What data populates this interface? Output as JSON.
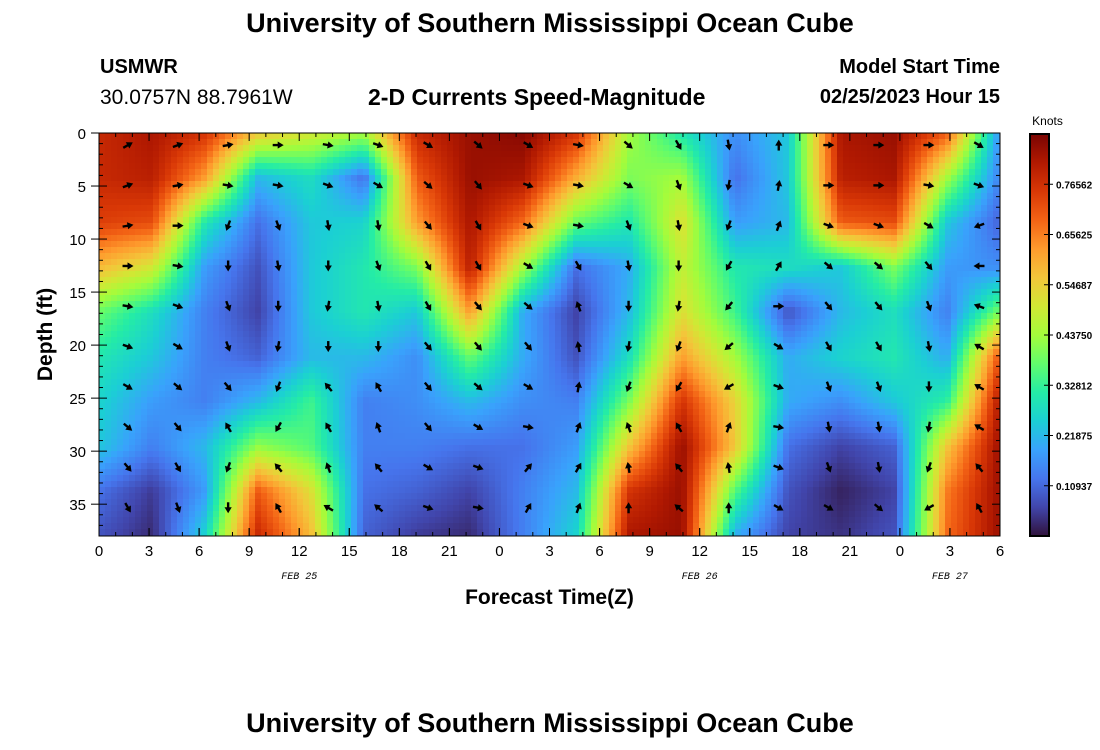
{
  "header": {
    "title": "University of Southern Mississippi Ocean Cube",
    "station": "USMWR",
    "coordinates": "30.0757N  88.7961W",
    "plot_title": "2-D Currents Speed-Magnitude",
    "model_label": "Model Start Time",
    "model_time": "02/25/2023 Hour 15"
  },
  "footer": {
    "title": "University of Southern Mississippi Ocean Cube"
  },
  "chart_data": {
    "type": "heatmap",
    "xlabel": "Forecast Time(Z)",
    "ylabel": "Depth (ft)",
    "colorbar_label": "Knots",
    "x_tick_labels": [
      "0",
      "3",
      "6",
      "9",
      "12",
      "15",
      "18",
      "21",
      "0",
      "3",
      "6",
      "9",
      "12",
      "15",
      "18",
      "21",
      "0",
      "3",
      "6"
    ],
    "date_labels": [
      {
        "label": "FEB 25",
        "at_tick": 4
      },
      {
        "label": "FEB 26",
        "at_tick": 12
      },
      {
        "label": "FEB 27",
        "at_tick": 17
      }
    ],
    "y_ticks": [
      0,
      5,
      10,
      15,
      20,
      25,
      30,
      35
    ],
    "ylim": [
      0,
      38
    ],
    "x_range_hours": [
      0,
      54
    ],
    "colorbar_ticks": [
      "0.76562",
      "0.65625",
      "0.54687",
      "0.43750",
      "0.32812",
      "0.21875",
      "0.10937"
    ],
    "colorbar_range": [
      0,
      0.875
    ],
    "colors": [
      "#30123b",
      "#4145ab",
      "#4675ed",
      "#39a2fc",
      "#1bcfd4",
      "#24eca6",
      "#61fc6c",
      "#a4fc3b",
      "#d1e834",
      "#f3c63a",
      "#fe9b2d",
      "#f36315",
      "#d93806",
      "#b11901",
      "#7a0402"
    ],
    "speed_grid_columns": [
      [
        0.78,
        0.78,
        0.74,
        0.58,
        0.38,
        0.3,
        0.26,
        0.24,
        0.12,
        0.08
      ],
      [
        0.82,
        0.8,
        0.72,
        0.5,
        0.28,
        0.24,
        0.18,
        0.14,
        0.05,
        0.03
      ],
      [
        0.76,
        0.62,
        0.3,
        0.18,
        0.14,
        0.14,
        0.14,
        0.22,
        0.18,
        0.26
      ],
      [
        0.56,
        0.22,
        0.12,
        0.08,
        0.06,
        0.1,
        0.22,
        0.42,
        0.7,
        0.78
      ],
      [
        0.5,
        0.28,
        0.24,
        0.24,
        0.24,
        0.22,
        0.34,
        0.36,
        0.52,
        0.58
      ],
      [
        0.44,
        0.12,
        0.26,
        0.3,
        0.3,
        0.22,
        0.14,
        0.14,
        0.12,
        0.1
      ],
      [
        0.78,
        0.7,
        0.62,
        0.4,
        0.24,
        0.16,
        0.16,
        0.14,
        0.1,
        0.05
      ],
      [
        0.84,
        0.84,
        0.82,
        0.8,
        0.62,
        0.38,
        0.22,
        0.12,
        0.06,
        0.03
      ],
      [
        0.86,
        0.82,
        0.68,
        0.44,
        0.2,
        0.2,
        0.16,
        0.12,
        0.14,
        0.14
      ],
      [
        0.76,
        0.6,
        0.38,
        0.12,
        0.06,
        0.08,
        0.14,
        0.18,
        0.22,
        0.26
      ],
      [
        0.44,
        0.4,
        0.3,
        0.2,
        0.22,
        0.28,
        0.4,
        0.56,
        0.76,
        0.82
      ],
      [
        0.3,
        0.44,
        0.52,
        0.48,
        0.52,
        0.62,
        0.76,
        0.84,
        0.84,
        0.84
      ],
      [
        0.16,
        0.12,
        0.18,
        0.3,
        0.34,
        0.44,
        0.54,
        0.56,
        0.36,
        0.2
      ],
      [
        0.24,
        0.24,
        0.22,
        0.28,
        0.08,
        0.2,
        0.2,
        0.12,
        0.08,
        0.06
      ],
      [
        0.82,
        0.8,
        0.7,
        0.24,
        0.22,
        0.26,
        0.16,
        0.06,
        0.02,
        0.04
      ],
      [
        0.84,
        0.82,
        0.72,
        0.4,
        0.28,
        0.3,
        0.24,
        0.1,
        0.06,
        0.08
      ],
      [
        0.7,
        0.44,
        0.24,
        0.18,
        0.14,
        0.2,
        0.32,
        0.56,
        0.66,
        0.68
      ],
      [
        0.16,
        0.14,
        0.1,
        0.16,
        0.4,
        0.72,
        0.82,
        0.84,
        0.84,
        0.84
      ]
    ],
    "direction_grid_columns": [
      [
        60,
        70,
        80,
        90,
        100,
        110,
        120,
        130,
        140,
        150
      ],
      [
        70,
        80,
        90,
        100,
        110,
        120,
        130,
        140,
        150,
        160
      ],
      [
        80,
        100,
        200,
        180,
        160,
        160,
        140,
        330,
        200,
        180
      ],
      [
        90,
        100,
        160,
        170,
        180,
        190,
        200,
        210,
        320,
        330
      ],
      [
        100,
        110,
        170,
        180,
        190,
        180,
        320,
        330,
        340,
        300
      ],
      [
        110,
        120,
        170,
        160,
        170,
        180,
        330,
        340,
        320,
        310
      ],
      [
        120,
        130,
        140,
        150,
        150,
        140,
        140,
        140,
        120,
        110
      ],
      [
        130,
        140,
        150,
        150,
        140,
        140,
        130,
        120,
        110,
        100
      ],
      [
        120,
        110,
        110,
        120,
        130,
        140,
        120,
        100,
        40,
        30
      ],
      [
        100,
        100,
        100,
        150,
        340,
        350,
        10,
        20,
        30,
        20
      ],
      [
        130,
        120,
        160,
        170,
        180,
        190,
        200,
        340,
        350,
        0
      ],
      [
        150,
        160,
        170,
        180,
        190,
        200,
        210,
        330,
        320,
        310
      ],
      [
        170,
        190,
        200,
        210,
        220,
        230,
        240,
        20,
        350,
        0
      ],
      [
        0,
        10,
        20,
        30,
        90,
        120,
        110,
        100,
        110,
        120
      ],
      [
        90,
        90,
        110,
        130,
        140,
        150,
        160,
        170,
        160,
        120
      ],
      [
        90,
        90,
        110,
        130,
        140,
        150,
        160,
        170,
        170,
        130
      ],
      [
        90,
        100,
        120,
        140,
        160,
        170,
        180,
        190,
        200,
        240
      ],
      [
        120,
        110,
        250,
        270,
        290,
        300,
        300,
        300,
        320,
        330
      ]
    ]
  }
}
